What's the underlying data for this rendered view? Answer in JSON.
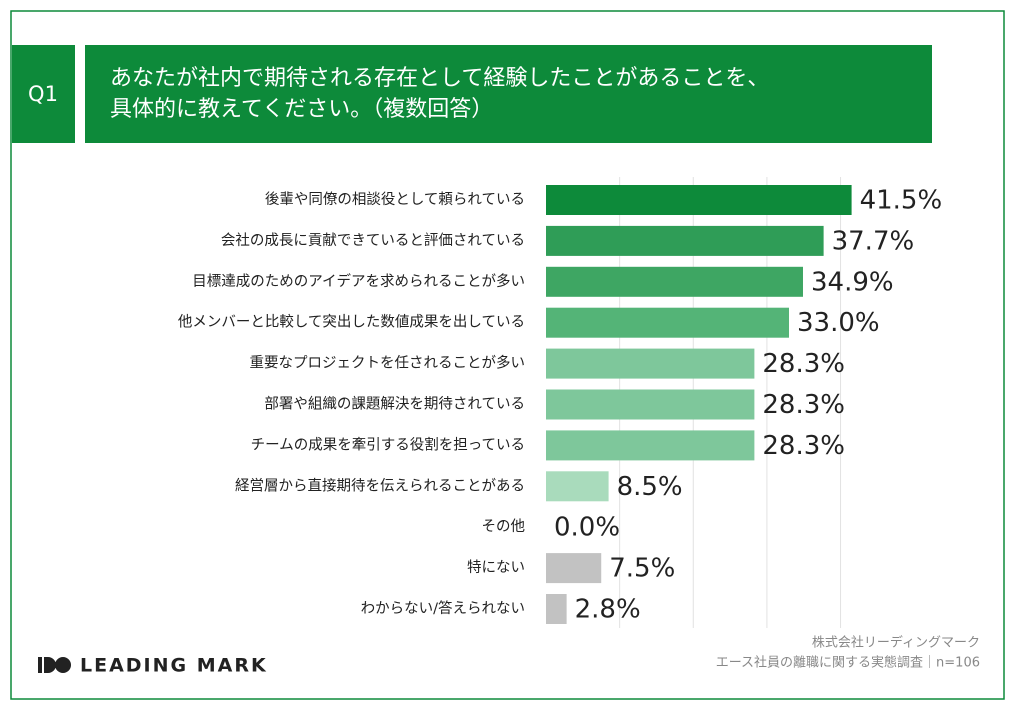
{
  "chart_data": {
    "type": "bar",
    "orientation": "horizontal",
    "question_label": "Q1",
    "title": [
      "あなたが社内で期待される存在として経験したことがあることを、",
      "具体的に教えてください。（複数回答）"
    ],
    "categories": [
      "後輩や同僚の相談役として頼られている",
      "会社の成長に貢献できていると評価されている",
      "目標達成のためのアイデアを求められることが多い",
      "他メンバーと比較して突出した数値成果を出している",
      "重要なプロジェクトを任されることが多い",
      "部署や組織の課題解決を期待されている",
      "チームの成果を牽引する役割を担っている",
      "経営層から直接期待を伝えられることがある",
      "その他",
      "特にない",
      "わからない/答えられない"
    ],
    "values": [
      41.5,
      37.7,
      34.9,
      33.0,
      28.3,
      28.3,
      28.3,
      8.5,
      0.0,
      7.5,
      2.8
    ],
    "value_labels": [
      "41.5%",
      "37.7%",
      "34.9%",
      "33.0%",
      "28.3%",
      "28.3%",
      "28.3%",
      "8.5%",
      "0.0%",
      "7.5%",
      "2.8%"
    ],
    "colors": [
      "#0d8a3a",
      "#2f9d57",
      "#3ea663",
      "#54b477",
      "#7ec79b",
      "#7ec79b",
      "#7ec79b",
      "#a9dbbc",
      "#c2c2c2",
      "#c2c2c2",
      "#c2c2c2"
    ],
    "xlim": [
      0,
      55
    ],
    "xticks": [
      10,
      20,
      30,
      40
    ],
    "grid": true,
    "source": [
      "株式会社リーディングマーク",
      "エース社員の離職に関する実態調査｜n=106"
    ],
    "logo_text": "LEADING MARK"
  }
}
